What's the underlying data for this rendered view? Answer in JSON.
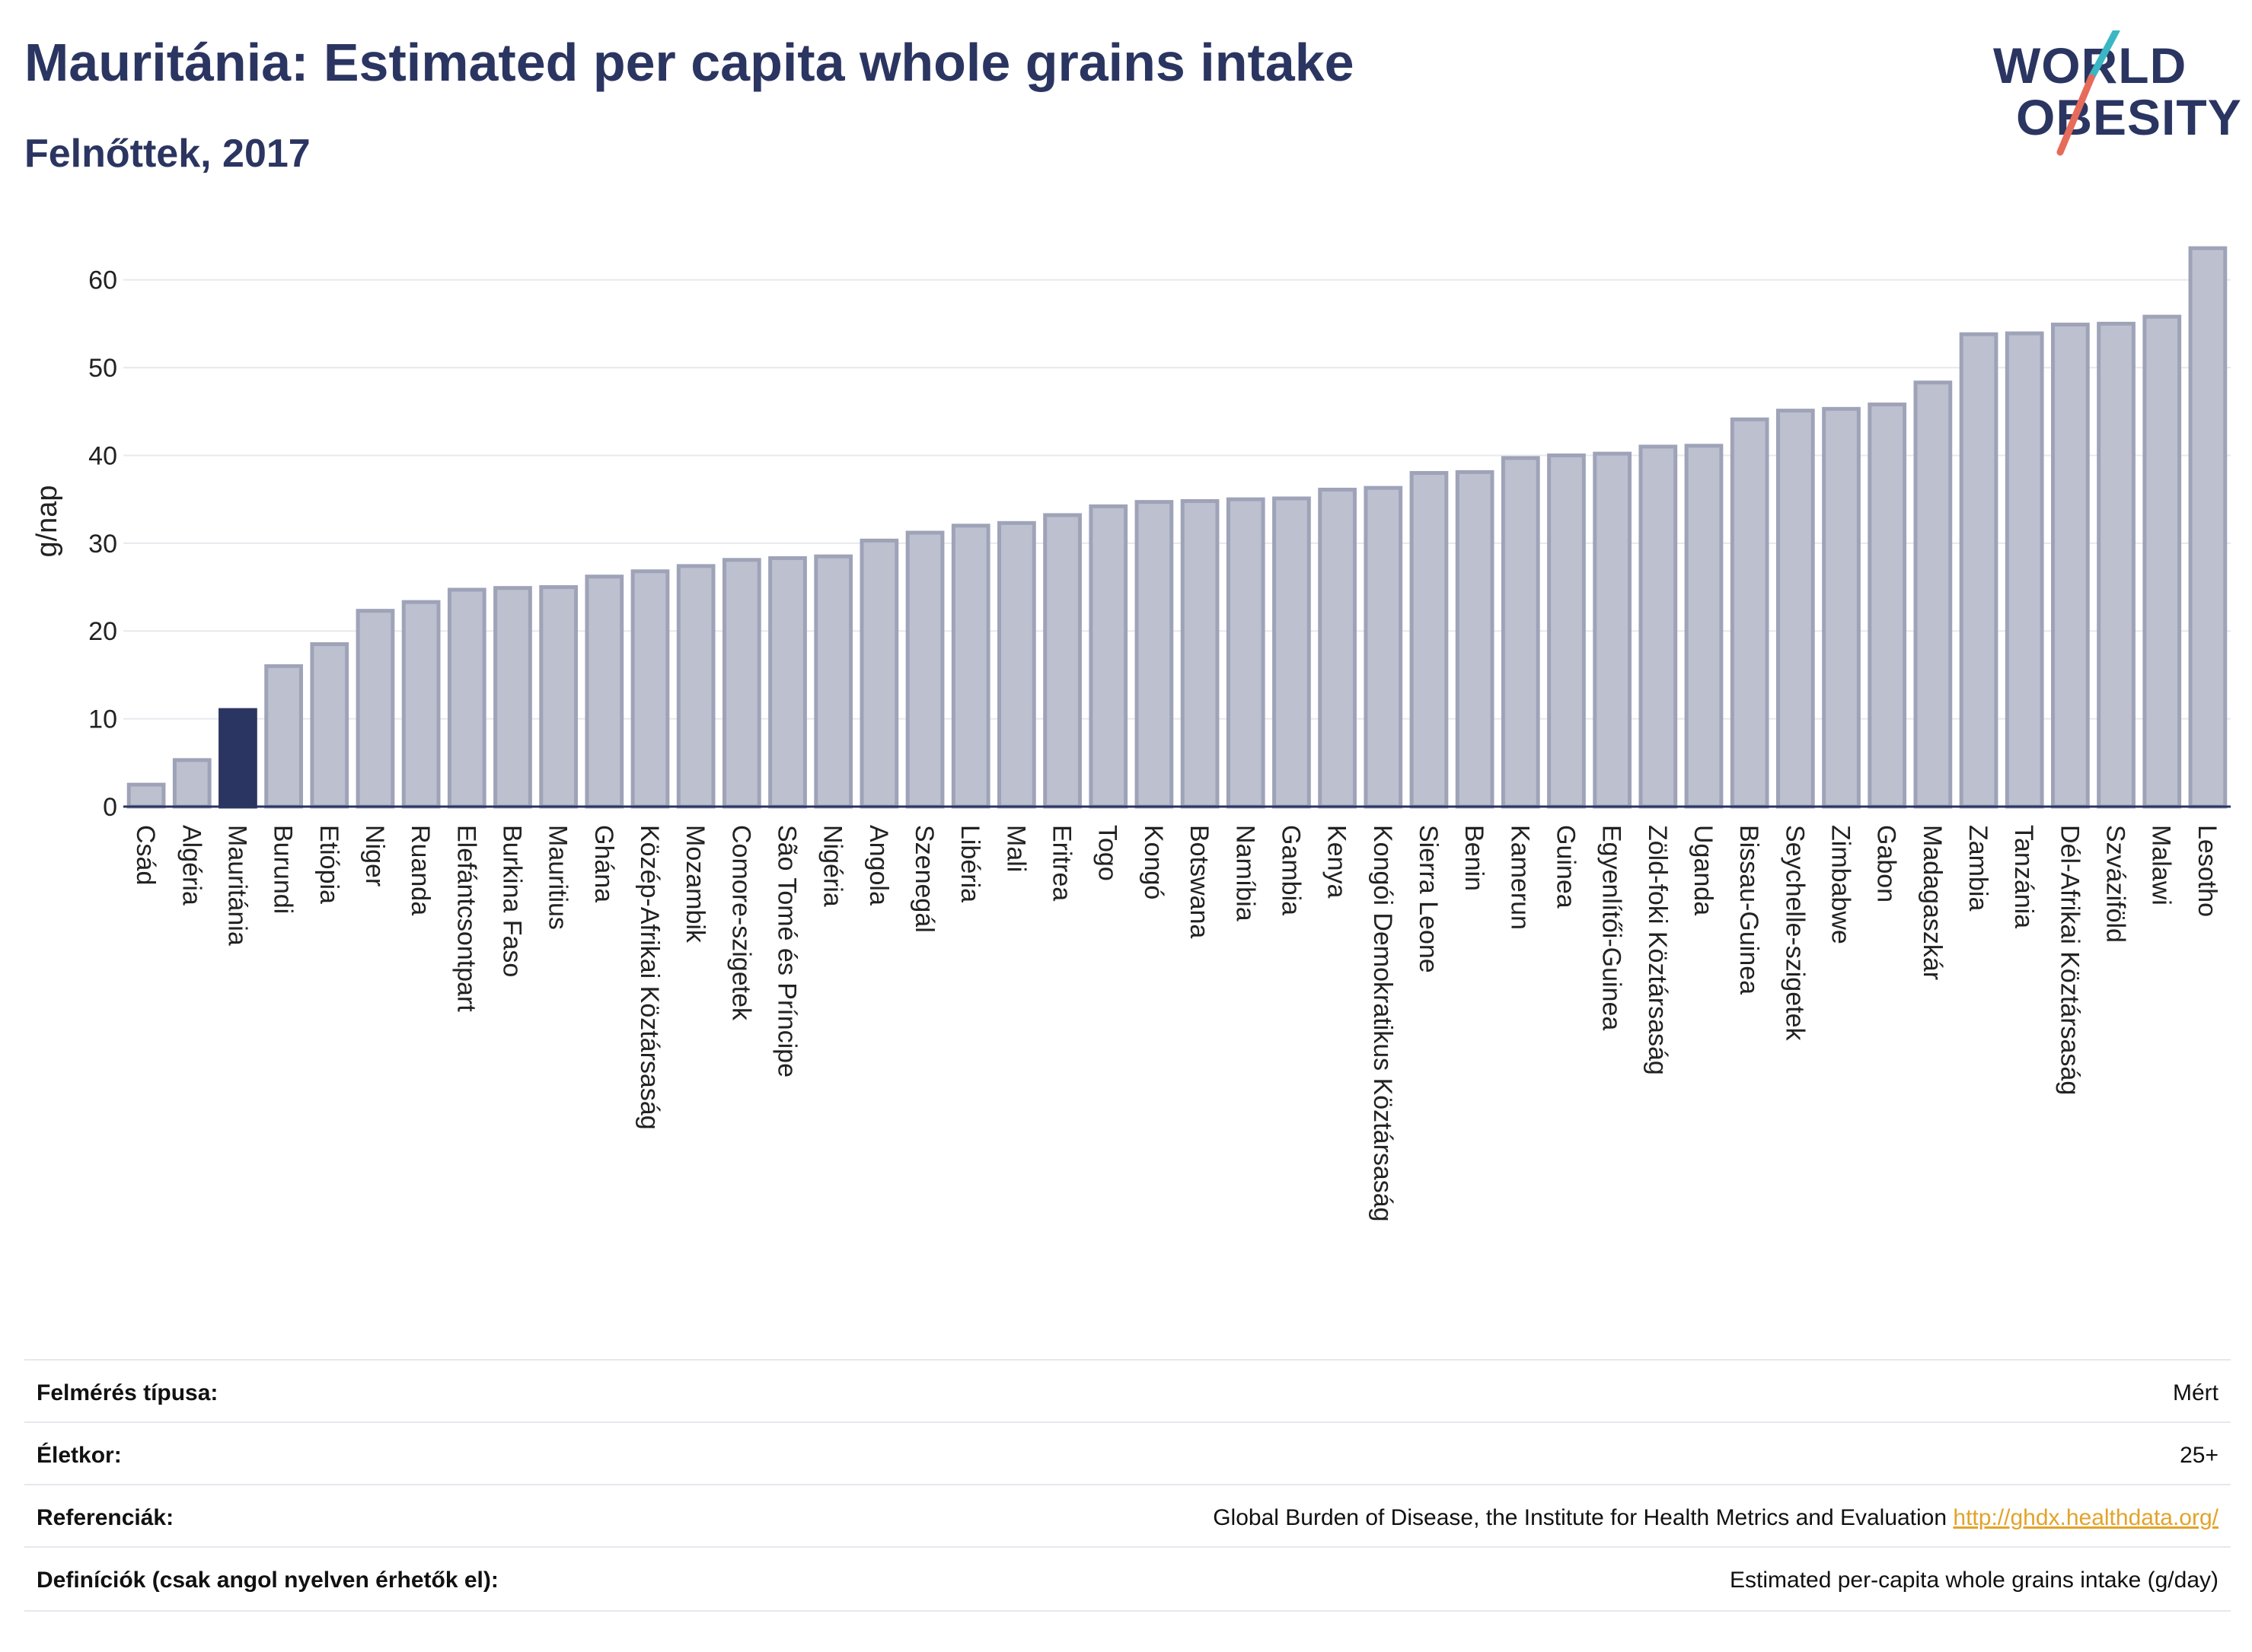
{
  "header": {
    "title": "Mauritánia: Estimated per capita whole grains intake",
    "subtitle": "Felnőttek, 2017"
  },
  "logo": {
    "line1": "WORLD",
    "line2": "OBESITY"
  },
  "colors": {
    "highlight": "#2b3561",
    "bar": "#bcc0cf",
    "bar_stroke": "#9ea3b8",
    "text": "#2b3561",
    "link": "#e2a32b",
    "logo_slash_top": "#3bb7c4",
    "logo_slash_bottom": "#e76b5a"
  },
  "chart_data": {
    "type": "bar",
    "ylabel": "g/nap",
    "ylim": [
      0,
      65
    ],
    "yticks": [
      0,
      10,
      20,
      30,
      40,
      50,
      60
    ],
    "grid": true,
    "highlight": "Mauritánia",
    "categories": [
      "Csád",
      "Algéria",
      "Mauritánia",
      "Burundi",
      "Etiópia",
      "Niger",
      "Ruanda",
      "Elefántcsontpart",
      "Burkina Faso",
      "Mauritius",
      "Ghána",
      "Közép-Afrikai Köztársaság",
      "Mozambik",
      "Comore-szigetek",
      "São Tomé és Príncipe",
      "Nigéria",
      "Angola",
      "Szenegál",
      "Libéria",
      "Mali",
      "Eritrea",
      "Togo",
      "Kongó",
      "Botswana",
      "Namíbia",
      "Gambia",
      "Kenya",
      "Kongói Demokratikus Köztársaság",
      "Sierra Leone",
      "Benin",
      "Kamerun",
      "Guinea",
      "Egyenlítői-Guinea",
      "Zöld-foki Köztársaság",
      "Uganda",
      "Bissau-Guinea",
      "Seychelle-szigetek",
      "Zimbabwe",
      "Gabon",
      "Madagaszkár",
      "Zambia",
      "Tanzánia",
      "Dél-Afrikai Köztársaság",
      "Szváziföld",
      "Malawi",
      "Lesotho"
    ],
    "values": [
      2.5,
      5.3,
      11.0,
      16.0,
      18.5,
      22.3,
      23.3,
      24.7,
      24.9,
      25.0,
      26.2,
      26.8,
      27.4,
      28.1,
      28.3,
      28.5,
      30.3,
      31.2,
      32.0,
      32.3,
      33.2,
      34.2,
      34.7,
      34.8,
      35.0,
      35.1,
      36.1,
      36.3,
      38.0,
      38.1,
      39.7,
      40.0,
      40.2,
      41.0,
      41.1,
      44.1,
      45.1,
      45.3,
      45.8,
      48.3,
      53.8,
      53.9,
      54.9,
      55.0,
      55.8,
      63.6
    ]
  },
  "meta": [
    {
      "label": "Felmérés típusa:",
      "value": "Mért"
    },
    {
      "label": "Életkor:",
      "value": "25+"
    },
    {
      "label": "Referenciák:",
      "value": "Global Burden of Disease, the Institute for Health Metrics and Evaluation",
      "link": "http://ghdx.healthdata.org/"
    },
    {
      "label": "Definíciók (csak angol nyelven érhetők el):",
      "value": "Estimated per-capita whole grains intake (g/day)"
    }
  ]
}
